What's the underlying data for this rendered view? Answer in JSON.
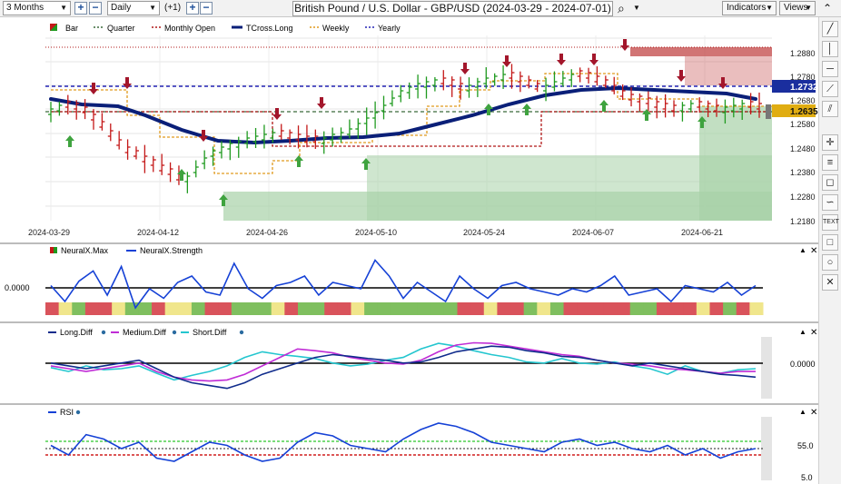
{
  "toolbar": {
    "period": "3 Months",
    "interval": "Daily",
    "zoom_step": "(+1)",
    "plus": "+",
    "minus": "−",
    "title": "British Pound / U.S. Dollar - GBP/USD (2024-03-29 - 2024-07-01)",
    "search_icon": "⌕",
    "indicators": "Indicators",
    "views": "Views"
  },
  "legend": {
    "bar": "Bar",
    "quarter": "Quarter",
    "monthly_open": "Monthly Open",
    "tcross": "TCross.Long",
    "weekly": "Weekly",
    "yearly": "Yearly"
  },
  "price_axis": [
    "1.2880",
    "1.2780",
    "1.2680",
    "1.2580",
    "1.2480",
    "1.2380",
    "1.2280",
    "1.2180"
  ],
  "price_tags": {
    "yearly": "1.2732",
    "last": "1.2635"
  },
  "date_labels": [
    "2024-03-29",
    "2024-04-12",
    "2024-04-26",
    "2024-05-10",
    "2024-05-24",
    "2024-06-07",
    "2024-06-21"
  ],
  "neural": {
    "max_label": "NeuralX.Max",
    "strength_label": "NeuralX.Strength",
    "axis": "0.0000"
  },
  "diff": {
    "long": "Long.Diff",
    "medium": "Medium.Diff",
    "short": "Short.Diff",
    "axis": "0.0000"
  },
  "rsi": {
    "label": "RSI",
    "axis_top": "55.0",
    "axis_bottom": "5.0"
  },
  "colors": {
    "bull": "#1f9a1f",
    "bear": "#c41818",
    "tcross": "#0a1f78",
    "yearly": "#2525b5",
    "quarter": "#3b6b3b",
    "monthly": "#b01818",
    "weekly": "#e09a1e",
    "strength": "#1541d6",
    "medium": "#c02cd6",
    "short": "#24c6cf",
    "long": "#102c8c"
  },
  "sidebar_icons": [
    "pencil-icon",
    "vertical-line-icon",
    "horizontal-line-icon",
    "ray-icon",
    "channel-icon",
    "crosshair-icon",
    "fibonacci-icon",
    "label-icon",
    "wave-icon",
    "text-icon",
    "rectangle-icon",
    "circle-icon",
    "delete-icon"
  ]
}
